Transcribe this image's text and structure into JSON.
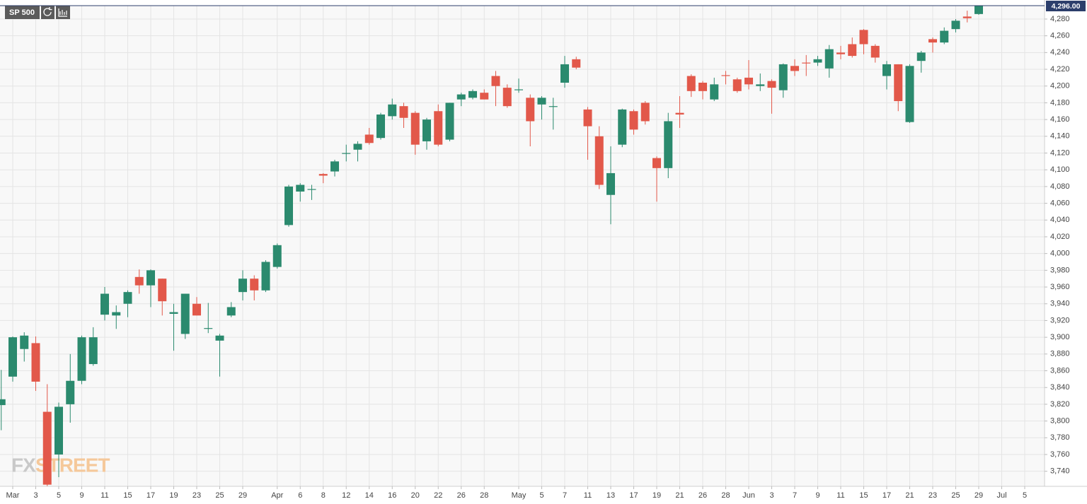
{
  "chart_data": {
    "type": "candlestick",
    "symbol": "SP 500",
    "watermark": {
      "prefix": "FX",
      "suffix": "STREET"
    },
    "last_price": {
      "value": 4296,
      "label": "4,296.00"
    },
    "up_color": "#2b8a6e",
    "down_color": "#e2584a",
    "grid": true,
    "ylim": [
      3722,
      4296
    ],
    "yticks": [
      {
        "value": 3740,
        "label": "3,740"
      },
      {
        "value": 3760,
        "label": "3,760"
      },
      {
        "value": 3780,
        "label": "3,780"
      },
      {
        "value": 3800,
        "label": "3,800"
      },
      {
        "value": 3820,
        "label": "3,820"
      },
      {
        "value": 3840,
        "label": "3,840"
      },
      {
        "value": 3860,
        "label": "3,860"
      },
      {
        "value": 3880,
        "label": "3,880"
      },
      {
        "value": 3900,
        "label": "3,900"
      },
      {
        "value": 3920,
        "label": "3,920"
      },
      {
        "value": 3940,
        "label": "3,940"
      },
      {
        "value": 3960,
        "label": "3,960"
      },
      {
        "value": 3980,
        "label": "3,980"
      },
      {
        "value": 4000,
        "label": "4,000"
      },
      {
        "value": 4020,
        "label": "4,020"
      },
      {
        "value": 4040,
        "label": "4,040"
      },
      {
        "value": 4060,
        "label": "4,060"
      },
      {
        "value": 4080,
        "label": "4,080"
      },
      {
        "value": 4100,
        "label": "4,100"
      },
      {
        "value": 4120,
        "label": "4,120"
      },
      {
        "value": 4140,
        "label": "4,140"
      },
      {
        "value": 4160,
        "label": "4,160"
      },
      {
        "value": 4180,
        "label": "4,180"
      },
      {
        "value": 4200,
        "label": "4,200"
      },
      {
        "value": 4220,
        "label": "4,220"
      },
      {
        "value": 4240,
        "label": "4,240"
      },
      {
        "value": 4260,
        "label": "4,260"
      },
      {
        "value": 4280,
        "label": "4,280"
      }
    ],
    "categories": [
      null,
      "Mar",
      null,
      "3",
      null,
      "5",
      null,
      "9",
      null,
      "11",
      null,
      "15",
      null,
      "17",
      null,
      "19",
      null,
      "23",
      null,
      "25",
      null,
      "29",
      null,
      null,
      "Apr",
      null,
      "6",
      null,
      "8",
      null,
      "12",
      null,
      "14",
      null,
      "16",
      null,
      "20",
      null,
      "22",
      null,
      "26",
      null,
      "28",
      null,
      null,
      "May",
      null,
      "5",
      null,
      "7",
      null,
      "11",
      null,
      "13",
      null,
      "17",
      null,
      "19",
      null,
      "21",
      null,
      "26",
      null,
      "28",
      null,
      "Jun",
      null,
      "3",
      null,
      "7",
      null,
      "9",
      null,
      "11",
      null,
      "15",
      null,
      "17",
      null,
      "21",
      null,
      "23",
      null,
      "25",
      null,
      "29",
      null,
      "Jul",
      null,
      "5",
      null
    ],
    "open": [
      3819,
      3853,
      3886,
      3893,
      3811,
      3760,
      3820,
      3848,
      3868,
      3927,
      3926,
      3940,
      3972,
      3962,
      3970,
      3928,
      3904,
      3940,
      3910,
      3896,
      3926,
      3954,
      3970,
      3956,
      3984,
      4034,
      4074,
      4076,
      4095,
      4098,
      4119,
      4124,
      4142,
      4138,
      4164,
      4176,
      4168,
      4134,
      4170,
      4136,
      4184,
      4186,
      4192,
      4212,
      4198,
      4195,
      4186,
      4178,
      4175,
      4204,
      4232,
      4172,
      4140,
      4070,
      4130,
      4170,
      4180,
      4114,
      4102,
      4168,
      4212,
      4204,
      4184,
      4213,
      4208,
      4210,
      4200,
      4206,
      4195,
      4224,
      4228,
      4228,
      4221,
      4240,
      4250,
      4267,
      4248,
      4212,
      4226,
      4157,
      4230,
      4256,
      4252,
      4268,
      4283,
      4286,
      null,
      null,
      null,
      null,
      null
    ],
    "high": [
      3861,
      3901,
      3906,
      3901,
      3844,
      3822,
      3880,
      3902,
      3912,
      3960,
      3938,
      3956,
      3981,
      3981,
      3970,
      3940,
      3952,
      3948,
      3941,
      3904,
      3942,
      3980,
      3974,
      3992,
      4012,
      4082,
      4084,
      4082,
      4096,
      4112,
      4130,
      4134,
      4150,
      4168,
      4185,
      4180,
      4170,
      4162,
      4178,
      4180,
      4192,
      4196,
      4196,
      4218,
      4202,
      4209,
      4190,
      4188,
      4186,
      4236,
      4235,
      4175,
      4152,
      4128,
      4173,
      4172,
      4182,
      4116,
      4168,
      4188,
      4214,
      4206,
      4210,
      4218,
      4210,
      4231,
      4215,
      4208,
      4227,
      4232,
      4237,
      4236,
      4249,
      4248,
      4258,
      4268,
      4250,
      4230,
      4226,
      4226,
      4242,
      4258,
      4270,
      4280,
      4290,
      4297,
      null,
      null,
      null,
      null,
      null
    ],
    "low": [
      3789,
      3847,
      3871,
      3836,
      3718,
      3733,
      3798,
      3844,
      3866,
      3920,
      3910,
      3924,
      3952,
      3936,
      3926,
      3884,
      3898,
      3926,
      3905,
      3853,
      3924,
      3944,
      3944,
      3954,
      3982,
      4032,
      4062,
      4064,
      4084,
      4092,
      4110,
      4110,
      4130,
      4136,
      4160,
      4150,
      4118,
      4124,
      4128,
      4134,
      4176,
      4184,
      4184,
      4176,
      4174,
      4192,
      4128,
      4160,
      4148,
      4198,
      4220,
      4112,
      4077,
      4035,
      4127,
      4142,
      4154,
      4062,
      4090,
      4150,
      4187,
      4184,
      4182,
      4202,
      4192,
      4196,
      4194,
      4167,
      4186,
      4212,
      4212,
      4224,
      4210,
      4232,
      4234,
      4238,
      4228,
      4196,
      4170,
      4156,
      4216,
      4240,
      4250,
      4264,
      4276,
      4285,
      null,
      null,
      null,
      null,
      null
    ],
    "close": [
      3826,
      3900,
      3902,
      3847,
      3724,
      3817,
      3848,
      3900,
      3900,
      3952,
      3930,
      3954,
      3962,
      3980,
      3943,
      3930,
      3952,
      3926,
      3911,
      3902,
      3936,
      3970,
      3956,
      3990,
      4010,
      4080,
      4082,
      4077,
      4093,
      4110,
      4120,
      4131,
      4132,
      4166,
      4178,
      4162,
      4130,
      4160,
      4130,
      4180,
      4190,
      4194,
      4184,
      4200,
      4176,
      4196,
      4158,
      4186,
      4176,
      4226,
      4222,
      4152,
      4082,
      4096,
      4172,
      4148,
      4158,
      4102,
      4158,
      4166,
      4194,
      4194,
      4202,
      4212,
      4194,
      4202,
      4202,
      4198,
      4226,
      4218,
      4227,
      4232,
      4244,
      4238,
      4236,
      4250,
      4234,
      4226,
      4182,
      4224,
      4240,
      4252,
      4266,
      4278,
      4281,
      4296,
      null,
      null,
      null,
      null,
      null
    ]
  }
}
